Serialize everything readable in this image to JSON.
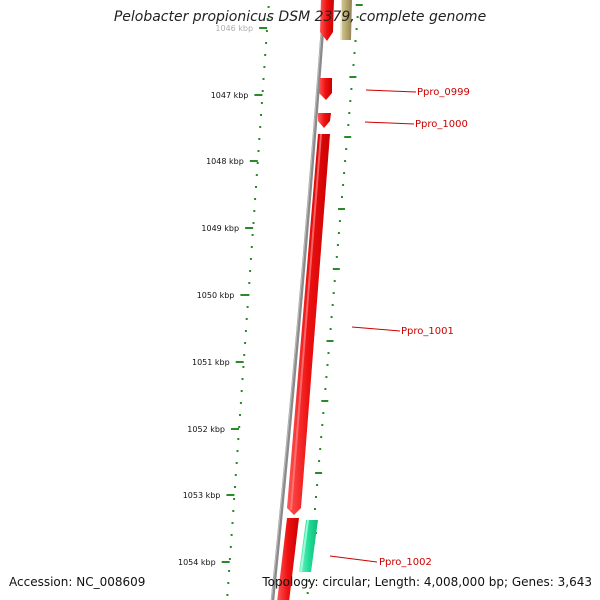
{
  "title": "Pelobacter propionicus DSM 2379, complete genome",
  "accession": "Accession: NC_008609",
  "summary": "Topology: circular; Length: 4,008,000 bp; Genes: 3,643",
  "ticks": [
    {
      "label": "1046 kbp",
      "faded": true
    },
    {
      "label": "1047 kbp"
    },
    {
      "label": "1048 kbp"
    },
    {
      "label": "1049 kbp"
    },
    {
      "label": "1050 kbp"
    },
    {
      "label": "1051 kbp"
    },
    {
      "label": "1052 kbp"
    },
    {
      "label": "1053 kbp"
    },
    {
      "label": "1054 kbp"
    }
  ],
  "genes": [
    {
      "label": "Ppro_0999"
    },
    {
      "label": "Ppro_1000"
    },
    {
      "label": "Ppro_1001"
    },
    {
      "label": "Ppro_1002"
    }
  ],
  "colors": {
    "backbone": "#8a8a8a",
    "gene_red": "#ee1111",
    "gene_red_light": "#ff6666",
    "gene_green": "#22dd99",
    "gene_olive": "#b8aa70",
    "ruler": "#2a8a2a",
    "leader": "#cc0000"
  }
}
